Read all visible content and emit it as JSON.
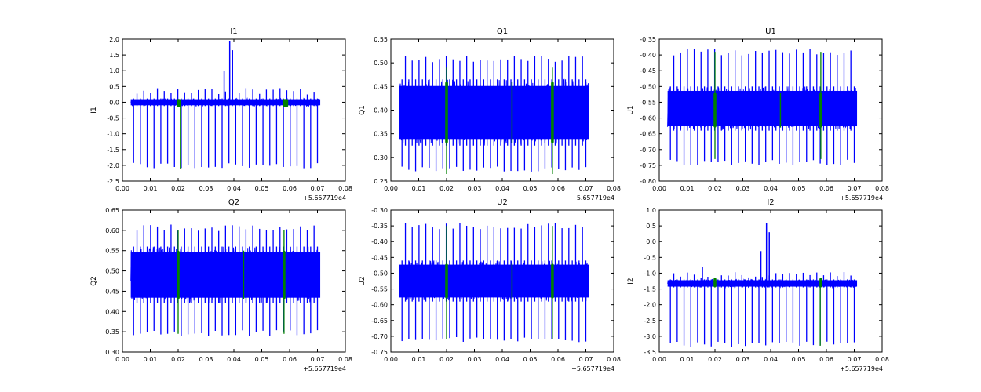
{
  "chart_data": [
    {
      "type": "line",
      "title": "I1",
      "ylabel": "I1",
      "x_offset_label": "+5.657719e4",
      "xlim": [
        0.0,
        0.08
      ],
      "ylim": [
        -2.5,
        2.0
      ],
      "xticks": [
        "0.00",
        "0.01",
        "0.02",
        "0.03",
        "0.04",
        "0.05",
        "0.06",
        "0.07",
        "0.08"
      ],
      "yticks": [
        "-2.5",
        "-2.0",
        "-1.5",
        "-1.0",
        "-0.5",
        "0.0",
        "0.5",
        "1.0",
        "1.5",
        "2.0"
      ],
      "x_range_data": [
        0.003,
        0.071
      ],
      "series": [
        {
          "color": "#0000ff",
          "baseline": -0.05,
          "band": [
            -0.12,
            0.12
          ],
          "spikes_down_to": -2.1,
          "spikes_up_to": 0.45,
          "extra_peaks": [
            [
              0.0365,
              1.0
            ],
            [
              0.0385,
              1.95
            ],
            [
              0.0395,
              1.65
            ]
          ]
        },
        {
          "color": "#008000",
          "segments": [
            [
              0.0195,
              0.021
            ],
            [
              0.0575,
              0.0595
            ]
          ],
          "center": 0.0,
          "band": [
            -0.15,
            0.1
          ],
          "spike_at": 0.0205,
          "spike_to": -2.1
        }
      ]
    },
    {
      "type": "line",
      "title": "Q1",
      "ylabel": "Q1",
      "x_offset_label": "+5.657719e4",
      "xlim": [
        0.0,
        0.08
      ],
      "ylim": [
        0.25,
        0.55
      ],
      "xticks": [
        "0.00",
        "0.01",
        "0.02",
        "0.03",
        "0.04",
        "0.05",
        "0.06",
        "0.07",
        "0.08"
      ],
      "yticks": [
        "0.25",
        "0.30",
        "0.35",
        "0.40",
        "0.45",
        "0.50",
        "0.55"
      ],
      "x_range_data": [
        0.003,
        0.071
      ],
      "series": [
        {
          "color": "#0000ff",
          "baseline": 0.395,
          "band": [
            0.325,
            0.465
          ],
          "spikes_down_to": 0.27,
          "spikes_up_to": 0.515
        },
        {
          "color": "#008000",
          "segments": [
            [
              0.0195,
              0.0205
            ],
            [
              0.0575,
              0.0585
            ]
          ],
          "lines_at": [
            0.0435
          ],
          "center": 0.395,
          "band": [
            0.33,
            0.46
          ],
          "spike_to_low": 0.265,
          "spike_to_high": 0.49
        }
      ]
    },
    {
      "type": "line",
      "title": "U1",
      "ylabel": "U1",
      "x_offset_label": "+5.657719e4",
      "xlim": [
        0.0,
        0.08
      ],
      "ylim": [
        -0.8,
        -0.35
      ],
      "xticks": [
        "0.00",
        "0.01",
        "0.02",
        "0.03",
        "0.04",
        "0.05",
        "0.06",
        "0.07",
        "0.08"
      ],
      "yticks": [
        "-0.80",
        "-0.75",
        "-0.70",
        "-0.65",
        "-0.60",
        "-0.55",
        "-0.50",
        "-0.45",
        "-0.40",
        "-0.35"
      ],
      "x_range_data": [
        0.003,
        0.071
      ],
      "series": [
        {
          "color": "#0000ff",
          "baseline": -0.575,
          "band": [
            -0.64,
            -0.5
          ],
          "spikes_down_to": -0.75,
          "spikes_up_to": -0.38
        },
        {
          "color": "#008000",
          "segments": [
            [
              0.0195,
              0.0205
            ],
            [
              0.0575,
              0.0585
            ]
          ],
          "lines_at": [
            0.0435
          ],
          "center": -0.575,
          "band": [
            -0.63,
            -0.52
          ],
          "spike_to_low": -0.73,
          "spike_to_high": -0.39
        }
      ]
    },
    {
      "type": "line",
      "title": "Q2",
      "ylabel": "Q2",
      "x_offset_label": "+5.657719e4",
      "xlim": [
        0.0,
        0.08
      ],
      "ylim": [
        0.3,
        0.65
      ],
      "xticks": [
        "0.00",
        "0.01",
        "0.02",
        "0.03",
        "0.04",
        "0.05",
        "0.06",
        "0.07",
        "0.08"
      ],
      "yticks": [
        "0.30",
        "0.35",
        "0.40",
        "0.45",
        "0.50",
        "0.55",
        "0.60",
        "0.65"
      ],
      "x_range_data": [
        0.003,
        0.071
      ],
      "series": [
        {
          "color": "#0000ff",
          "baseline": 0.49,
          "band": [
            0.42,
            0.56
          ],
          "spikes_down_to": 0.34,
          "spikes_up_to": 0.615
        },
        {
          "color": "#008000",
          "segments": [
            [
              0.0195,
              0.0205
            ],
            [
              0.0575,
              0.0585
            ]
          ],
          "lines_at": [
            0.0435
          ],
          "center": 0.49,
          "band": [
            0.43,
            0.55
          ],
          "spike_to_low": 0.345,
          "spike_to_high": 0.6
        }
      ]
    },
    {
      "type": "line",
      "title": "U2",
      "ylabel": "U2",
      "x_offset_label": "+5.657719e4",
      "xlim": [
        0.0,
        0.08
      ],
      "ylim": [
        -0.75,
        -0.3
      ],
      "xticks": [
        "0.00",
        "0.01",
        "0.02",
        "0.03",
        "0.04",
        "0.05",
        "0.06",
        "0.07",
        "0.08"
      ],
      "yticks": [
        "-0.75",
        "-0.70",
        "-0.65",
        "-0.60",
        "-0.55",
        "-0.50",
        "-0.45",
        "-0.40",
        "-0.35",
        "-0.30"
      ],
      "x_range_data": [
        0.003,
        0.071
      ],
      "series": [
        {
          "color": "#0000ff",
          "baseline": -0.525,
          "band": [
            -0.59,
            -0.46
          ],
          "spikes_down_to": -0.72,
          "spikes_up_to": -0.34
        },
        {
          "color": "#008000",
          "segments": [
            [
              0.0195,
              0.0205
            ],
            [
              0.0575,
              0.0585
            ]
          ],
          "lines_at": [
            0.0435
          ],
          "center": -0.525,
          "band": [
            -0.58,
            -0.47
          ],
          "spike_to_low": -0.71,
          "spike_to_high": -0.35
        }
      ]
    },
    {
      "type": "line",
      "title": "I2",
      "ylabel": "I2",
      "x_offset_label": "+5.657719e4",
      "xlim": [
        0.0,
        0.08
      ],
      "ylim": [
        -3.5,
        1.0
      ],
      "xticks": [
        "0.00",
        "0.01",
        "0.02",
        "0.03",
        "0.04",
        "0.05",
        "0.06",
        "0.07",
        "0.08"
      ],
      "yticks": [
        "-3.5",
        "-3.0",
        "-2.5",
        "-2.0",
        "-1.5",
        "-1.0",
        "-0.5",
        "0.0",
        "0.5",
        "1.0"
      ],
      "x_range_data": [
        0.003,
        0.071
      ],
      "series": [
        {
          "color": "#0000ff",
          "baseline": -1.35,
          "band": [
            -1.45,
            -1.2
          ],
          "spikes_down_to": -3.35,
          "spikes_up_to": -0.95,
          "extra_peaks": [
            [
              0.0155,
              -0.8
            ],
            [
              0.0365,
              -0.3
            ],
            [
              0.0385,
              0.6
            ],
            [
              0.0395,
              0.3
            ]
          ]
        },
        {
          "color": "#008000",
          "segments": [
            [
              0.0195,
              0.0205
            ],
            [
              0.0575,
              0.0585
            ]
          ],
          "center": -1.3,
          "band": [
            -1.45,
            -1.15
          ],
          "spike_at": 0.0575,
          "spike_to": -3.3
        }
      ]
    }
  ]
}
